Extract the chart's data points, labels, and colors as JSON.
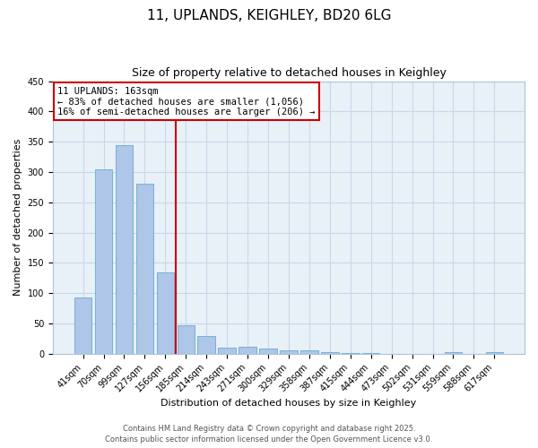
{
  "title1": "11, UPLANDS, KEIGHLEY, BD20 6LG",
  "title2": "Size of property relative to detached houses in Keighley",
  "xlabel": "Distribution of detached houses by size in Keighley",
  "ylabel": "Number of detached properties",
  "categories": [
    "41sqm",
    "70sqm",
    "99sqm",
    "127sqm",
    "156sqm",
    "185sqm",
    "214sqm",
    "243sqm",
    "271sqm",
    "300sqm",
    "329sqm",
    "358sqm",
    "387sqm",
    "415sqm",
    "444sqm",
    "473sqm",
    "502sqm",
    "531sqm",
    "559sqm",
    "588sqm",
    "617sqm"
  ],
  "values": [
    93,
    305,
    345,
    281,
    134,
    47,
    30,
    10,
    11,
    8,
    5,
    6,
    3,
    1,
    1,
    0,
    0,
    0,
    2,
    0,
    2
  ],
  "bar_color": "#aec6e8",
  "bar_edge_color": "#6aaad4",
  "vline_x": 4.5,
  "annotation_title": "11 UPLANDS: 163sqm",
  "annotation_line1": "← 83% of detached houses are smaller (1,056)",
  "annotation_line2": "16% of semi-detached houses are larger (206) →",
  "annotation_box_color": "#ffffff",
  "annotation_box_edge": "#cc0000",
  "vline_color": "#cc0000",
  "grid_color": "#c8d8e8",
  "background_color": "#e8f0f8",
  "ylim": [
    0,
    450
  ],
  "yticks": [
    0,
    50,
    100,
    150,
    200,
    250,
    300,
    350,
    400,
    450
  ],
  "footer1": "Contains HM Land Registry data © Crown copyright and database right 2025.",
  "footer2": "Contains public sector information licensed under the Open Government Licence v3.0."
}
